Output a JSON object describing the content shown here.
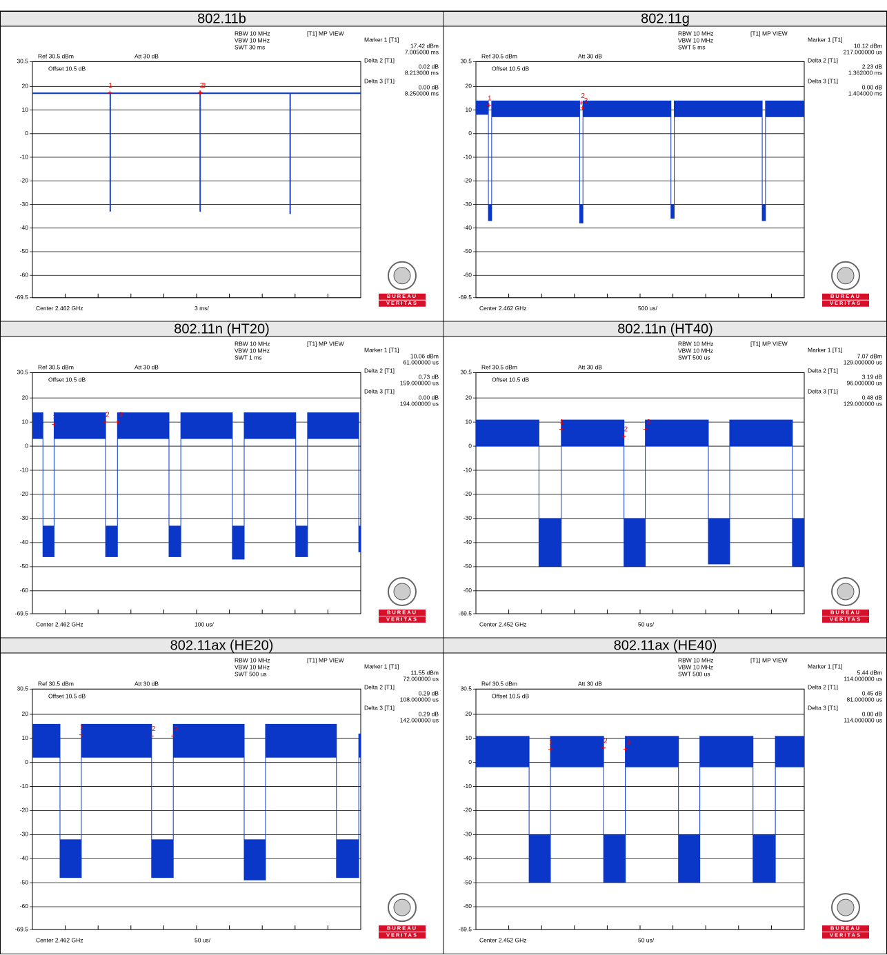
{
  "axis": {
    "ylim": [
      -69.5,
      30.5
    ],
    "yticks": [
      30.5,
      20,
      10,
      0,
      -10,
      -20,
      -30,
      -40,
      -50,
      -60,
      -69.5
    ],
    "xlim": [
      0,
      10
    ],
    "xticks": [
      0,
      1,
      2,
      3,
      4,
      5,
      6,
      7,
      8,
      9,
      10
    ]
  },
  "logo": {
    "top": "BUREAU",
    "bottom": "VERITAS"
  },
  "panels": [
    {
      "title": "802.11b",
      "rbw": "RBW 10 MHz",
      "vbw": "VBW 10 MHz",
      "swt": "SWT 30 ms",
      "view": "[T1] MP VIEW",
      "ref": "Ref 30.5 dBm",
      "att": "Att 30 dB",
      "offset": "Offset 10.5 dB",
      "center": "Center 2.462 GHz",
      "span": "3 ms/",
      "readout": [
        {
          "name": "Marker 1 [T1]",
          "level": "17.42 dBm",
          "time": "7.005000 ms"
        },
        {
          "name": "Delta 2 [T1]",
          "level": "0.02 dB",
          "time": "8.213000 ms"
        },
        {
          "name": "Delta 3 [T1]",
          "level": "0.00 dB",
          "time": "8.250000 ms"
        }
      ],
      "segments": [
        [
          0,
          2.36,
          16.8,
          17.4
        ],
        [
          2.36,
          2.38,
          -33,
          -32
        ],
        [
          2.38,
          5.1,
          16.8,
          17.4
        ],
        [
          5.1,
          5.12,
          -33,
          -32
        ],
        [
          5.12,
          7.84,
          16.8,
          17.4
        ],
        [
          7.84,
          7.86,
          -34,
          -33
        ],
        [
          7.86,
          10,
          16.8,
          17.4
        ]
      ],
      "markers": [
        {
          "label": "1",
          "x": 2.36,
          "y": 17.4
        },
        {
          "label": "2",
          "x": 5.1,
          "y": 17.4
        },
        {
          "label": "3",
          "x": 5.12,
          "y": 17.4
        }
      ]
    },
    {
      "title": "802.11g",
      "rbw": "RBW 10 MHz",
      "vbw": "VBW 10 MHz",
      "swt": "SWT 5 ms",
      "view": "[T1] MP VIEW",
      "ref": "Ref 30.5 dBm",
      "att": "Att 30 dB",
      "offset": "Offset 10.5 dB",
      "center": "Center 2.462 GHz",
      "span": "500 us/",
      "readout": [
        {
          "name": "Marker 1 [T1]",
          "level": "10.12 dBm",
          "time": "217.000000 us"
        },
        {
          "name": "Delta 2 [T1]",
          "level": "2.23 dB",
          "time": "1.362000 ms"
        },
        {
          "name": "Delta 3 [T1]",
          "level": "0.00 dB",
          "time": "1.404000 ms"
        }
      ],
      "segments": [
        [
          0,
          0.38,
          8,
          14
        ],
        [
          0.38,
          0.48,
          -37,
          -30
        ],
        [
          0.48,
          3.16,
          7,
          14
        ],
        [
          3.16,
          3.26,
          -38,
          -30
        ],
        [
          3.26,
          5.94,
          7,
          14
        ],
        [
          5.94,
          6.04,
          -36,
          -30
        ],
        [
          6.04,
          8.72,
          7,
          14
        ],
        [
          8.72,
          8.82,
          -37,
          -30
        ],
        [
          8.82,
          10,
          7,
          14
        ]
      ],
      "markers": [
        {
          "label": "1",
          "x": 0.4,
          "y": 12
        },
        {
          "label": "2",
          "x": 3.2,
          "y": 13
        },
        {
          "label": "3",
          "x": 3.25,
          "y": 11
        }
      ]
    },
    {
      "title": "802.11n (HT20)",
      "rbw": "RBW 10 MHz",
      "vbw": "VBW 10 MHz",
      "swt": "SWT 1 ms",
      "view": "[T1] MP VIEW",
      "ref": "Ref 30.5 dBm",
      "att": "Att 30 dB",
      "offset": "Offset 10.5 dB",
      "center": "Center 2.462 GHz",
      "span": "100 us/",
      "readout": [
        {
          "name": "Marker 1 [T1]",
          "level": "10.06 dBm",
          "time": "61.000000 us"
        },
        {
          "name": "Delta 2 [T1]",
          "level": "0.73 dB",
          "time": "159.000000 us"
        },
        {
          "name": "Delta 3 [T1]",
          "level": "0.00 dB",
          "time": "194.000000 us"
        }
      ],
      "segments": [
        [
          0,
          0.32,
          3,
          14
        ],
        [
          0.32,
          0.66,
          -46,
          -33
        ],
        [
          0.66,
          2.23,
          3,
          14
        ],
        [
          2.23,
          2.59,
          -46,
          -33
        ],
        [
          2.59,
          4.16,
          3,
          14
        ],
        [
          4.16,
          4.52,
          -46,
          -33
        ],
        [
          4.52,
          6.09,
          3,
          14
        ],
        [
          6.09,
          6.45,
          -47,
          -33
        ],
        [
          6.45,
          8.02,
          3,
          14
        ],
        [
          8.02,
          8.38,
          -46,
          -33
        ],
        [
          8.38,
          9.94,
          3,
          14
        ],
        [
          9.94,
          10,
          -44,
          -33
        ]
      ],
      "markers": [
        {
          "label": "1",
          "x": 0.66,
          "y": 9
        },
        {
          "label": "2",
          "x": 2.23,
          "y": 10
        },
        {
          "label": "3",
          "x": 2.59,
          "y": 10
        }
      ]
    },
    {
      "title": "802.11n (HT40)",
      "rbw": "RBW 10 MHz",
      "vbw": "VBW 10 MHz",
      "swt": "SWT 500 us",
      "view": "[T1] MP VIEW",
      "ref": "Ref 30.5 dBm",
      "att": "Att 30 dB",
      "offset": "Offset 10.5 dB",
      "center": "Center 2.452 GHz",
      "span": "50 us/",
      "readout": [
        {
          "name": "Marker 1 [T1]",
          "level": "7.07 dBm",
          "time": "129.000000 us"
        },
        {
          "name": "Delta 2 [T1]",
          "level": "3.19 dB",
          "time": "96.000000 us"
        },
        {
          "name": "Delta 3 [T1]",
          "level": "0.48 dB",
          "time": "129.000000 us"
        }
      ],
      "segments": [
        [
          0,
          1.92,
          0,
          11
        ],
        [
          1.92,
          2.6,
          -50,
          -30
        ],
        [
          2.6,
          4.51,
          0,
          11
        ],
        [
          4.51,
          5.16,
          -50,
          -30
        ],
        [
          5.16,
          7.08,
          0,
          11
        ],
        [
          7.08,
          7.73,
          -49,
          -30
        ],
        [
          7.73,
          9.64,
          0,
          11
        ],
        [
          9.64,
          10,
          -50,
          -30
        ]
      ],
      "markers": [
        {
          "label": "1",
          "x": 2.6,
          "y": 7
        },
        {
          "label": "2",
          "x": 4.51,
          "y": 4
        },
        {
          "label": "3",
          "x": 5.16,
          "y": 7
        }
      ]
    },
    {
      "title": "802.11ax (HE20)",
      "rbw": "RBW 10 MHz",
      "vbw": "VBW 10 MHz",
      "swt": "SWT 500 us",
      "view": "[T1] MP VIEW",
      "ref": "Ref 30.5 dBm",
      "att": "Att 30 dB",
      "offset": "Offset 10.5 dB",
      "center": "Center 2.462 GHz",
      "span": "50 us/",
      "readout": [
        {
          "name": "Marker 1 [T1]",
          "level": "11.55 dBm",
          "time": "72.000000 us"
        },
        {
          "name": "Delta 2 [T1]",
          "level": "0.29 dB",
          "time": "108.000000 us"
        },
        {
          "name": "Delta 3 [T1]",
          "level": "0.29 dB",
          "time": "142.000000 us"
        }
      ],
      "segments": [
        [
          0,
          0.84,
          2,
          16
        ],
        [
          0.84,
          1.49,
          -48,
          -32
        ],
        [
          1.49,
          3.63,
          2,
          16
        ],
        [
          3.63,
          4.29,
          -48,
          -32
        ],
        [
          4.29,
          6.45,
          2,
          16
        ],
        [
          6.45,
          7.1,
          -49,
          -32
        ],
        [
          7.1,
          9.26,
          2,
          16
        ],
        [
          9.26,
          9.94,
          -48,
          -32
        ],
        [
          9.94,
          10,
          2,
          12
        ]
      ],
      "markers": [
        {
          "label": "1",
          "x": 1.49,
          "y": 11.5
        },
        {
          "label": "2",
          "x": 3.63,
          "y": 11
        },
        {
          "label": "3",
          "x": 4.29,
          "y": 11
        }
      ]
    },
    {
      "title": "802.11ax (HE40)",
      "rbw": "RBW 10 MHz",
      "vbw": "VBW 10 MHz",
      "swt": "SWT 500 us",
      "view": "[T1] MP VIEW",
      "ref": "Ref 30.5 dBm",
      "att": "Att 30 dB",
      "offset": "Offset 10.5 dB",
      "center": "Center 2.452 GHz",
      "span": "50 us/",
      "readout": [
        {
          "name": "Marker 1 [T1]",
          "level": "5.44 dBm",
          "time": "114.000000 us"
        },
        {
          "name": "Delta 2 [T1]",
          "level": "0.45 dB",
          "time": "81.000000 us"
        },
        {
          "name": "Delta 3 [T1]",
          "level": "0.00 dB",
          "time": "114.000000 us"
        }
      ],
      "segments": [
        [
          0,
          1.62,
          -2,
          11
        ],
        [
          1.62,
          2.27,
          -50,
          -30
        ],
        [
          2.27,
          3.89,
          -2,
          11
        ],
        [
          3.89,
          4.55,
          -50,
          -30
        ],
        [
          4.55,
          6.17,
          -2,
          11
        ],
        [
          6.17,
          6.82,
          -50,
          -30
        ],
        [
          6.82,
          8.44,
          -2,
          11
        ],
        [
          8.44,
          9.12,
          -50,
          -30
        ],
        [
          9.12,
          10,
          -2,
          11
        ]
      ],
      "markers": [
        {
          "label": "1",
          "x": 2.27,
          "y": 5.4
        },
        {
          "label": "2",
          "x": 3.89,
          "y": 6
        },
        {
          "label": "3",
          "x": 4.55,
          "y": 5.4
        }
      ]
    }
  ]
}
